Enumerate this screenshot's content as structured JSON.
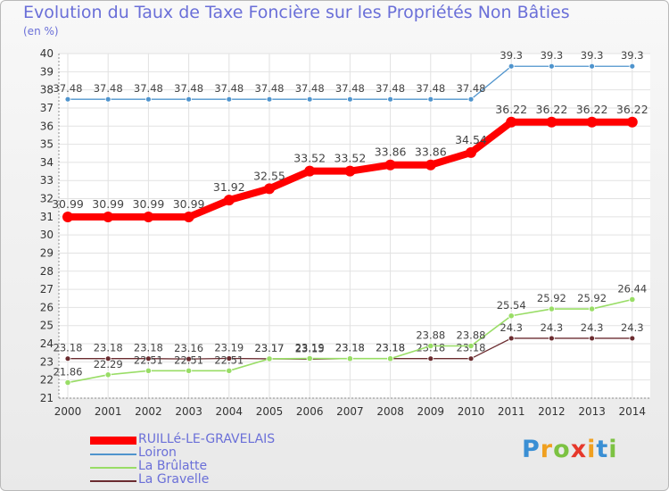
{
  "title": "Evolution du Taux de Taxe Foncière sur les Propriétés Non Bâties",
  "unit": "(en %)",
  "logo": "Proxiti",
  "colors": {
    "RUILLé-LE-GRAVELAIS": "#ff0000",
    "Loiron": "#4f94cd",
    "La Brûlatte": "#99dd66",
    "La Gravelle": "#6b2c30"
  },
  "chart_data": {
    "type": "line",
    "title": "Evolution du Taux de Taxe Foncière sur les Propriétés Non Bâties",
    "ylabel": "(en %)",
    "xlabel": "",
    "ylim": [
      21,
      40
    ],
    "yticks": [
      21,
      22,
      23,
      24,
      25,
      26,
      27,
      28,
      29,
      30,
      31,
      32,
      33,
      34,
      35,
      36,
      37,
      38,
      39,
      40
    ],
    "grid": true,
    "legend_position": "bottom-left",
    "x": [
      "2000",
      "2001",
      "2002",
      "2003",
      "2004",
      "2005",
      "2006",
      "2007",
      "2008",
      "2009",
      "2010",
      "2011",
      "2012",
      "2013",
      "2014"
    ],
    "series": [
      {
        "name": "RUILLé-LE-GRAVELAIS",
        "values": [
          30.99,
          30.99,
          30.99,
          30.99,
          31.92,
          32.55,
          33.52,
          33.52,
          33.86,
          33.86,
          34.54,
          36.22,
          36.22,
          36.22,
          36.22
        ],
        "labels": [
          "30.99",
          "30.99",
          "30.99",
          "30.99",
          "31.92",
          "32.55",
          "33.52",
          "33.52",
          "33.86",
          "33.86",
          "34.54",
          "36.22",
          "36.22",
          "36.22",
          "36.22"
        ]
      },
      {
        "name": "Loiron",
        "values": [
          37.48,
          37.48,
          37.48,
          37.48,
          37.48,
          37.48,
          37.48,
          37.48,
          37.48,
          37.48,
          37.48,
          39.3,
          39.3,
          39.3,
          39.3
        ],
        "labels": [
          "37.48",
          "37.48",
          "37.48",
          "37.48",
          "37.48",
          "37.48",
          "37.48",
          "37.48",
          "37.48",
          "37.48",
          "37.48",
          "39.3",
          "39.3",
          "39.3",
          "39.3"
        ]
      },
      {
        "name": "La Brûlatte",
        "values": [
          21.86,
          22.29,
          22.51,
          22.51,
          22.51,
          23.17,
          23.19,
          23.18,
          23.18,
          23.88,
          23.88,
          25.54,
          25.92,
          25.92,
          26.44
        ],
        "labels": [
          "21.86",
          "22.29",
          "22.51",
          "22.51",
          "22.51",
          "23.17",
          "23.19",
          "23.18",
          "23.18",
          "23.88",
          "23.88",
          "25.54",
          "25.92",
          "25.92",
          "26.44"
        ]
      },
      {
        "name": "La Gravelle",
        "values": [
          23.18,
          23.18,
          23.18,
          23.16,
          23.19,
          23.17,
          23.15,
          23.18,
          23.18,
          23.18,
          23.18,
          24.3,
          24.3,
          24.3,
          24.3
        ],
        "labels": [
          "23.18",
          "23.18",
          "23.18",
          "23.16",
          "23.19",
          "23.17",
          "23.15",
          "23.18",
          "23.18",
          "23.18",
          "23.18",
          "24.3",
          "24.3",
          "24.3",
          "24.3"
        ]
      }
    ]
  }
}
